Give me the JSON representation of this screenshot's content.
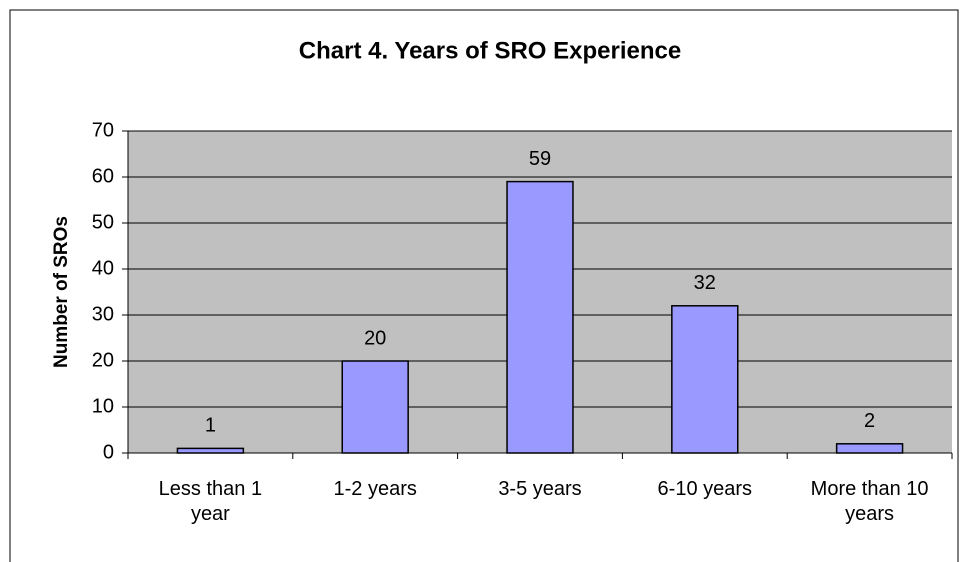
{
  "chart_data": {
    "type": "bar",
    "title": "Chart 4. Years of SRO Experience",
    "y_label": "Number of SROs",
    "categories": [
      "Less than 1 year",
      "1-2 years",
      "3-5 years",
      "6-10 years",
      "More than 10 years"
    ],
    "values": [
      1,
      20,
      59,
      32,
      2
    ],
    "color": "#9999ff",
    "ylim": [
      0,
      70
    ],
    "yticks": [
      0,
      10,
      20,
      30,
      40,
      50,
      60,
      70
    ],
    "grid": true
  }
}
